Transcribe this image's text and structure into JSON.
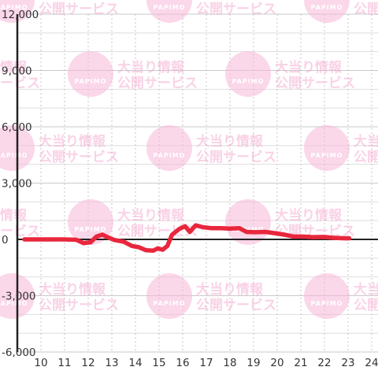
{
  "chart_data": {
    "type": "line",
    "title": "",
    "xlabel": "",
    "ylabel": "",
    "x_ticks": [
      10,
      11,
      12,
      13,
      14,
      15,
      16,
      17,
      18,
      19,
      20,
      21,
      22,
      23,
      24
    ],
    "y_ticks": [
      12000,
      9000,
      6000,
      3000,
      0,
      -3000,
      -6000
    ],
    "y_tick_labels": [
      "12,000",
      "9,000",
      "6,000",
      "3,000",
      "0",
      "-3,000",
      "-6,000"
    ],
    "xlim": [
      9.25,
      24.25
    ],
    "ylim": [
      -6000,
      12000
    ],
    "grid": true,
    "legend": "none",
    "series": [
      {
        "color": "#e8273d",
        "points": [
          [
            9.3,
            0
          ],
          [
            11.0,
            0
          ],
          [
            11.5,
            -20
          ],
          [
            11.8,
            -200
          ],
          [
            12.1,
            -150
          ],
          [
            12.35,
            150
          ],
          [
            12.6,
            250
          ],
          [
            12.85,
            100
          ],
          [
            13.1,
            -30
          ],
          [
            13.5,
            -120
          ],
          [
            13.85,
            -350
          ],
          [
            14.15,
            -420
          ],
          [
            14.45,
            -580
          ],
          [
            14.75,
            -600
          ],
          [
            14.95,
            -480
          ],
          [
            15.15,
            -550
          ],
          [
            15.35,
            -350
          ],
          [
            15.55,
            250
          ],
          [
            15.85,
            550
          ],
          [
            16.1,
            700
          ],
          [
            16.3,
            400
          ],
          [
            16.55,
            750
          ],
          [
            16.85,
            650
          ],
          [
            17.2,
            600
          ],
          [
            17.6,
            600
          ],
          [
            18.0,
            580
          ],
          [
            18.4,
            600
          ],
          [
            18.7,
            400
          ],
          [
            19.1,
            380
          ],
          [
            19.5,
            400
          ],
          [
            19.9,
            330
          ],
          [
            20.3,
            250
          ],
          [
            20.7,
            150
          ],
          [
            21.1,
            150
          ],
          [
            21.5,
            120
          ],
          [
            22.0,
            130
          ],
          [
            22.4,
            80
          ],
          [
            22.9,
            60
          ],
          [
            23.05,
            60
          ]
        ]
      }
    ],
    "watermark": {
      "title": "大当り情報",
      "subtitle": "公開サービス",
      "logo_text": "PAPIMO"
    }
  }
}
